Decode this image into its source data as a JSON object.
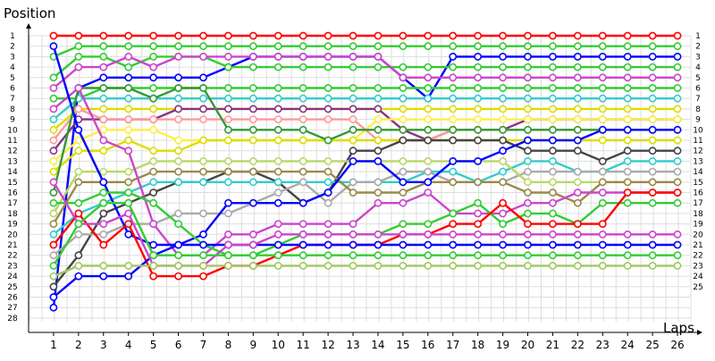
{
  "chart_data": {
    "type": "line",
    "title": "",
    "ylabel": "Position",
    "xlabel": "Laps",
    "x_ticks": [
      1,
      2,
      3,
      4,
      5,
      6,
      7,
      8,
      9,
      10,
      11,
      12,
      13,
      14,
      15,
      16,
      17,
      18,
      19,
      20,
      21,
      22,
      23,
      24,
      25,
      26
    ],
    "y_ticks": [
      1,
      2,
      3,
      4,
      5,
      6,
      7,
      8,
      9,
      10,
      11,
      12,
      13,
      14,
      15,
      16,
      17,
      18,
      19,
      20,
      21,
      22,
      23,
      24,
      25,
      26,
      27,
      28
    ],
    "right_labels": [
      1,
      2,
      3,
      4,
      5,
      6,
      7,
      8,
      9,
      10,
      11,
      12,
      13,
      14,
      15,
      16,
      17,
      18,
      19,
      20,
      21,
      22,
      23,
      24,
      25
    ],
    "xlim": [
      0,
      26.5
    ],
    "ylim": [
      1,
      28
    ],
    "x_reversed": false,
    "y_reversed": true,
    "grid": true,
    "legend": "none",
    "series": [
      {
        "color": "#ff0000",
        "start": 1,
        "values": [
          1,
          1,
          1,
          1,
          1,
          1,
          1,
          1,
          1,
          1,
          1,
          1,
          1,
          1,
          1,
          1,
          1,
          1,
          1,
          1,
          1,
          1,
          1,
          1,
          1,
          1
        ]
      },
      {
        "color": "#33cc33",
        "start": 1,
        "values": [
          3,
          2,
          2,
          2,
          2,
          2,
          2,
          2,
          2,
          2,
          2,
          2,
          2,
          2,
          2,
          2,
          2,
          2,
          2,
          2,
          2,
          2,
          2,
          2,
          2,
          2
        ]
      },
      {
        "color": "#0000ff",
        "start": 1,
        "values": [
          27,
          6,
          5,
          5,
          5,
          5,
          5,
          4,
          3,
          3,
          3,
          3,
          3,
          3,
          5,
          7,
          3,
          3,
          3,
          3,
          3,
          3,
          3,
          3,
          3,
          3
        ]
      },
      {
        "color": "#33cc33",
        "start": 1,
        "values": [
          5,
          3,
          3,
          4,
          3,
          3,
          3,
          4,
          4,
          4,
          4,
          4,
          4,
          4,
          4,
          4,
          4,
          4,
          4,
          4,
          4,
          4,
          4,
          4,
          4,
          4
        ]
      },
      {
        "color": "#cc44cc",
        "start": 1,
        "values": [
          6,
          4,
          4,
          3,
          4,
          3,
          3,
          3,
          3,
          3,
          3,
          3,
          3,
          3,
          5,
          5,
          5,
          5,
          5,
          5,
          5,
          5,
          5,
          5,
          5,
          5
        ]
      },
      {
        "color": "#33cc33",
        "start": 1,
        "values": [
          7,
          7,
          6,
          6,
          6,
          6,
          6,
          6,
          6,
          6,
          6,
          6,
          6,
          6,
          6,
          6,
          6,
          6,
          6,
          6,
          6,
          6,
          6,
          6,
          6,
          6
        ]
      },
      {
        "color": "#33cccc",
        "start": 1,
        "values": [
          9,
          7,
          7,
          7,
          7,
          7,
          7,
          7,
          7,
          7,
          7,
          7,
          7,
          7,
          7,
          7,
          7,
          7,
          7,
          7,
          7,
          7,
          7,
          7,
          7,
          7
        ]
      },
      {
        "color": "#dddd00",
        "start": 1,
        "values": [
          10,
          8,
          8,
          8,
          8,
          8,
          8,
          8,
          8,
          8,
          8,
          8,
          8,
          8,
          8,
          8,
          8,
          8,
          8,
          8,
          8,
          8,
          8,
          8,
          8,
          8
        ]
      },
      {
        "color": "#883388",
        "start": 1,
        "values": [
          12,
          9,
          9,
          9,
          9,
          8,
          8,
          8,
          8,
          8,
          8,
          8,
          8,
          8,
          10,
          11,
          10,
          10,
          10,
          9,
          9,
          9,
          9,
          9,
          9,
          9
        ]
      },
      {
        "color": "#ff9999",
        "start": 1,
        "values": [
          11,
          8,
          9,
          9,
          9,
          9,
          9,
          9,
          9,
          9,
          9,
          9,
          9,
          11,
          11,
          11,
          10,
          10,
          10,
          10,
          10,
          10,
          10,
          10,
          10,
          10
        ]
      },
      {
        "color": "#ffee44",
        "start": 1,
        "values": [
          13,
          11,
          10,
          10,
          10,
          11,
          11,
          11,
          11,
          11,
          11,
          11,
          11,
          9,
          9,
          9,
          9,
          9,
          9,
          9,
          9,
          9,
          9,
          9,
          9,
          9
        ]
      },
      {
        "color": "#dddd00",
        "start": 1,
        "values": [
          14,
          12,
          12,
          11,
          12,
          12,
          11,
          11,
          11,
          11,
          11,
          11,
          11,
          11,
          11,
          11,
          11,
          11,
          11,
          11,
          11,
          11,
          11,
          11,
          11,
          11
        ]
      },
      {
        "color": "#444444",
        "start": 1,
        "values": [
          25,
          22,
          18,
          17,
          16,
          15,
          15,
          14,
          14,
          15,
          17,
          16,
          12,
          12,
          11,
          11,
          11,
          11,
          11,
          12,
          12,
          12,
          13,
          12,
          12,
          12
        ]
      },
      {
        "color": "#33cccc",
        "start": 1,
        "values": [
          20,
          18,
          17,
          16,
          15,
          15,
          15,
          15,
          15,
          15,
          15,
          15,
          15,
          15,
          15,
          14,
          14,
          15,
          14,
          13,
          13,
          14,
          14,
          13,
          13,
          13
        ]
      },
      {
        "color": "#aaaaaa",
        "start": 1,
        "values": [
          22,
          20,
          20,
          19,
          19,
          18,
          18,
          18,
          17,
          16,
          15,
          17,
          15,
          15,
          14,
          14,
          15,
          15,
          15,
          14,
          14,
          14,
          14,
          14,
          14,
          14
        ]
      },
      {
        "color": "#339933",
        "start": 1,
        "values": [
          16,
          6,
          6,
          6,
          7,
          6,
          6,
          10,
          10,
          10,
          10,
          11,
          10,
          10,
          10,
          10,
          10,
          10,
          10,
          10,
          10,
          10,
          10,
          10,
          10,
          10
        ]
      },
      {
        "color": "#b8d868",
        "start": 1,
        "values": [
          18,
          14,
          14,
          14,
          13,
          13,
          13,
          13,
          13,
          13,
          13,
          13,
          13,
          13,
          13,
          13,
          13,
          13,
          13,
          15,
          15,
          15,
          15,
          15,
          15,
          15
        ]
      },
      {
        "color": "#9a8a4a",
        "start": 1,
        "values": [
          19,
          15,
          15,
          15,
          14,
          14,
          14,
          14,
          14,
          14,
          14,
          14,
          16,
          16,
          16,
          15,
          15,
          15,
          15,
          16,
          16,
          17,
          15,
          15,
          15,
          15
        ]
      },
      {
        "color": "#cc44cc",
        "start": 1,
        "values": [
          8,
          6,
          11,
          12,
          19,
          22,
          22,
          20,
          20,
          19,
          19,
          19,
          19,
          17,
          17,
          16,
          18,
          18,
          18,
          17,
          17,
          16,
          16,
          16,
          16,
          16
        ]
      },
      {
        "color": "#0000ff",
        "start": 1,
        "values": [
          2,
          10,
          15,
          20,
          21,
          21,
          20,
          17,
          17,
          17,
          17,
          16,
          13,
          13,
          15,
          15,
          13,
          13,
          12,
          11,
          11,
          11,
          10,
          10,
          10,
          10
        ]
      },
      {
        "color": "#33cc33",
        "start": 1,
        "values": [
          17,
          17,
          16,
          16,
          17,
          19,
          21,
          22,
          22,
          21,
          20,
          20,
          20,
          20,
          19,
          19,
          18,
          17,
          19,
          18,
          18,
          19,
          17,
          17,
          17,
          17
        ]
      },
      {
        "color": "#ff0000",
        "start": 1,
        "values": [
          21,
          18,
          21,
          19,
          24,
          24,
          24,
          23,
          23,
          22,
          21,
          21,
          21,
          21,
          20,
          20,
          19,
          19,
          17,
          19,
          19,
          19,
          19,
          16,
          16,
          16
        ]
      },
      {
        "color": "#0000ff",
        "start": 1,
        "values": [
          26,
          24,
          24,
          24,
          22,
          21,
          21,
          21,
          21,
          21,
          21,
          21,
          21,
          21,
          21,
          21,
          21,
          21,
          21,
          21,
          21,
          21,
          21,
          21,
          21,
          21
        ]
      },
      {
        "color": "#cc44cc",
        "start": 1,
        "values": [
          15,
          19,
          19,
          18,
          23,
          23,
          23,
          21,
          21,
          20,
          20,
          20,
          20,
          20,
          20,
          20,
          20,
          20,
          20,
          20,
          20,
          20,
          20,
          20,
          20,
          20
        ]
      },
      {
        "color": "#33cc33",
        "start": 1,
        "values": [
          23,
          19,
          17,
          17,
          22,
          22,
          22,
          22,
          22,
          22,
          22,
          22,
          22,
          22,
          22,
          22,
          22,
          22,
          22,
          22,
          22,
          22,
          22,
          22,
          22,
          22
        ]
      },
      {
        "color": "#a0c860",
        "start": 1,
        "values": [
          24,
          23,
          23,
          23,
          23,
          23,
          23,
          23,
          23,
          23,
          23,
          23,
          23,
          23,
          23,
          23,
          23,
          23,
          23,
          23,
          23,
          23,
          23,
          23,
          23,
          23
        ]
      }
    ]
  }
}
